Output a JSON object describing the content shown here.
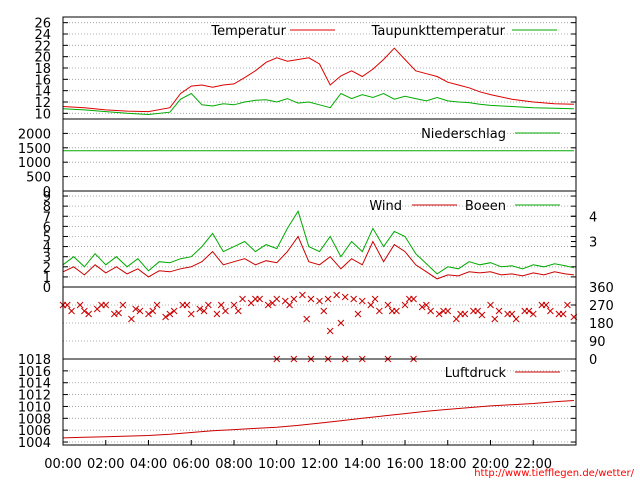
{
  "chart_data": [
    {
      "type": "line",
      "panel": "temperature",
      "ylim": [
        9,
        27
      ],
      "yticks": [
        "26",
        "24",
        "22",
        "20",
        "18",
        "16",
        "14",
        "12",
        "10"
      ],
      "ytick_values": [
        26,
        24,
        22,
        20,
        18,
        16,
        14,
        12,
        10
      ],
      "series": [
        {
          "name": "Temperatur",
          "color": "#dd0000",
          "x": [
            0,
            1,
            2,
            3,
            4,
            5,
            5.5,
            6,
            6.5,
            7,
            7.5,
            8,
            8.5,
            9,
            9.5,
            10,
            10.5,
            11,
            11.5,
            12,
            12.5,
            13,
            13.5,
            14,
            14.5,
            15,
            15.5,
            16,
            16.5,
            17,
            17.5,
            18,
            18.5,
            19,
            19.5,
            20,
            21,
            22,
            23,
            23.9
          ],
          "values": [
            11.2,
            11,
            10.6,
            10.4,
            10.3,
            11,
            13.5,
            14.8,
            15,
            14.6,
            15,
            15.2,
            16.3,
            17.5,
            19,
            19.8,
            19.2,
            19.5,
            19.8,
            18.7,
            15,
            16.6,
            17.5,
            16.5,
            17.8,
            19.5,
            21.5,
            19.5,
            17.5,
            17,
            16.5,
            15.5,
            15,
            14.5,
            13.8,
            13.3,
            12.5,
            12,
            11.7,
            11.6
          ]
        },
        {
          "name": "Taupunkttemperatur",
          "color": "#00aa00",
          "x": [
            0,
            1,
            2,
            3,
            4,
            5,
            5.5,
            6,
            6.5,
            7,
            7.5,
            8,
            8.5,
            9,
            9.5,
            10,
            10.5,
            11,
            11.5,
            12,
            12.5,
            13,
            13.5,
            14,
            14.5,
            15,
            15.5,
            16,
            16.5,
            17,
            17.5,
            18,
            18.5,
            19,
            19.5,
            20,
            21,
            22,
            23,
            23.9
          ],
          "values": [
            10.8,
            10.6,
            10.3,
            10,
            9.8,
            10.2,
            12.5,
            13.5,
            11.5,
            11.3,
            11.7,
            11.5,
            12,
            12.3,
            12.4,
            12,
            12.6,
            11.8,
            12,
            11.5,
            11,
            13.5,
            12.6,
            13.3,
            12.8,
            13.5,
            12.5,
            13,
            12.6,
            12.2,
            12.8,
            12.2,
            12,
            11.9,
            11.6,
            11.4,
            11.2,
            11,
            10.9,
            10.8
          ]
        }
      ]
    },
    {
      "type": "line",
      "panel": "precipitation",
      "ylim": [
        0,
        2500
      ],
      "yticks": [
        "2000",
        "1500",
        "1000",
        "500",
        "0"
      ],
      "ytick_values": [
        2000,
        1500,
        1000,
        500,
        0
      ],
      "series": [
        {
          "name": "Niederschlag",
          "color": "#00aa00",
          "x": [
            0,
            23.9
          ],
          "values": [
            1400,
            1400
          ]
        }
      ]
    },
    {
      "type": "line",
      "panel": "wind",
      "ylim": [
        0,
        9.5
      ],
      "yticks": [
        "9",
        "8",
        "7",
        "6",
        "5",
        "4",
        "3",
        "2",
        "1",
        "0"
      ],
      "ytick_values": [
        9,
        8,
        7,
        6,
        5,
        4,
        3,
        2,
        1,
        0
      ],
      "yticks_right": [
        "4",
        "3"
      ],
      "ytick_right_values": [
        7,
        4.5
      ],
      "series": [
        {
          "name": "Wind",
          "color": "#cc0000",
          "x": [
            0,
            0.5,
            1,
            1.5,
            2,
            2.5,
            3,
            3.5,
            4,
            4.5,
            5,
            5.5,
            6,
            6.5,
            7,
            7.5,
            8,
            8.5,
            9,
            9.5,
            10,
            10.5,
            11,
            11.5,
            12,
            12.5,
            13,
            13.5,
            14,
            14.5,
            15,
            15.5,
            16,
            16.5,
            17,
            17.5,
            18,
            18.5,
            19,
            19.5,
            20,
            20.5,
            21,
            21.5,
            22,
            22.5,
            23,
            23.5,
            23.9
          ],
          "values": [
            1.5,
            2,
            1.2,
            2.2,
            1.4,
            2,
            1.3,
            1.8,
            1,
            1.6,
            1.5,
            1.8,
            2,
            2.5,
            3.5,
            2.2,
            2.5,
            2.8,
            2.2,
            2.6,
            2.4,
            3.5,
            5,
            2.5,
            2.2,
            3,
            1.8,
            2.8,
            2.2,
            4.5,
            2.5,
            4.2,
            3.5,
            2.2,
            1.5,
            0.8,
            1.2,
            1.1,
            1.5,
            1.4,
            1.5,
            1.2,
            1.3,
            1.1,
            1.4,
            1.2,
            1.5,
            1.3,
            1.2
          ]
        },
        {
          "name": "Boeen",
          "color": "#00aa00",
          "x": [
            0,
            0.5,
            1,
            1.5,
            2,
            2.5,
            3,
            3.5,
            4,
            4.5,
            5,
            5.5,
            6,
            6.5,
            7,
            7.5,
            8,
            8.5,
            9,
            9.5,
            10,
            10.5,
            11,
            11.5,
            12,
            12.5,
            13,
            13.5,
            14,
            14.5,
            15,
            15.5,
            16,
            16.5,
            17,
            17.5,
            18,
            18.5,
            19,
            19.5,
            20,
            20.5,
            21,
            21.5,
            22,
            22.5,
            23,
            23.5,
            23.9
          ],
          "values": [
            2.2,
            3,
            2,
            3.3,
            2.2,
            3,
            2,
            2.8,
            1.6,
            2.5,
            2.4,
            2.8,
            3,
            4,
            5.3,
            3.5,
            4,
            4.5,
            3.5,
            4.2,
            3.8,
            5.8,
            7.5,
            4,
            3.5,
            5,
            3,
            4.5,
            3.5,
            5.8,
            4,
            5.5,
            5,
            3.3,
            2.3,
            1.3,
            2,
            1.8,
            2.5,
            2.2,
            2.4,
            2,
            2.1,
            1.8,
            2.2,
            2,
            2.3,
            2.1,
            1.9
          ]
        }
      ]
    },
    {
      "type": "scatter",
      "panel": "wind-direction",
      "ylim": [
        0,
        360
      ],
      "yticks_right": [
        "360",
        "270",
        "180",
        "90",
        "0"
      ],
      "ytick_right_values": [
        360,
        270,
        180,
        90,
        0
      ],
      "series": [
        {
          "name": "Windrichtung",
          "color": "#cc0000",
          "x": [
            0,
            0.4,
            0.8,
            1.2,
            1.6,
            2,
            2.4,
            2.8,
            3.2,
            3.6,
            4,
            4.4,
            4.8,
            5.2,
            5.6,
            6,
            6.4,
            6.8,
            7.2,
            7.6,
            8,
            8.4,
            8.8,
            9.2,
            9.6,
            10,
            10.4,
            10.8,
            11.2,
            11.6,
            12,
            12.4,
            12.8,
            13.2,
            13.6,
            14,
            14.4,
            14.8,
            15.2,
            15.6,
            16,
            16.4,
            16.8,
            17.2,
            17.6,
            18,
            18.4,
            18.8,
            19.2,
            19.6,
            20,
            20.4,
            20.8,
            21.2,
            21.6,
            22,
            22.4,
            22.8,
            23.2,
            23.6,
            23.9,
            0.2,
            1,
            1.8,
            2.6,
            3.4,
            4.2,
            5,
            5.8,
            6.6,
            7.4,
            8.2,
            9,
            9.8,
            10.6,
            11.4,
            12.2,
            13,
            13.8,
            14.6,
            15.4,
            16.2,
            17,
            17.8,
            18.6,
            19.4,
            20.2,
            21,
            21.8,
            22.6,
            23.4,
            10,
            10.8,
            11.6,
            12.4,
            13.2,
            14,
            15.2,
            16.4,
            12.5
          ],
          "values": [
            270,
            240,
            270,
            225,
            250,
            270,
            225,
            270,
            200,
            240,
            225,
            270,
            210,
            240,
            270,
            225,
            250,
            270,
            225,
            240,
            270,
            300,
            280,
            300,
            270,
            300,
            290,
            300,
            320,
            300,
            290,
            300,
            320,
            310,
            300,
            290,
            270,
            240,
            270,
            240,
            270,
            300,
            260,
            240,
            225,
            240,
            200,
            225,
            240,
            220,
            270,
            240,
            225,
            200,
            240,
            225,
            270,
            240,
            225,
            270,
            210,
            270,
            240,
            270,
            230,
            250,
            240,
            225,
            270,
            240,
            270,
            240,
            300,
            280,
            270,
            200,
            240,
            180,
            225,
            300,
            240,
            300,
            270,
            240,
            225,
            240,
            200,
            225,
            240,
            270,
            225,
            0,
            0,
            0,
            0,
            0,
            0,
            0,
            0,
            140
          ]
        }
      ]
    },
    {
      "type": "line",
      "panel": "pressure",
      "ylim": [
        1003.5,
        1018
      ],
      "yticks": [
        "1018",
        "1016",
        "1014",
        "1012",
        "1010",
        "1008",
        "1006",
        "1004"
      ],
      "ytick_values": [
        1018,
        1016,
        1014,
        1012,
        1010,
        1008,
        1006,
        1004
      ],
      "series": [
        {
          "name": "Luftdruck",
          "color": "#cc0000",
          "x": [
            0,
            1,
            2,
            3,
            4,
            5,
            6,
            7,
            8,
            9,
            10,
            11,
            12,
            13,
            14,
            15,
            16,
            17,
            18,
            19,
            20,
            21,
            22,
            23,
            23.9
          ],
          "values": [
            1004.7,
            1004.8,
            1004.9,
            1005,
            1005.1,
            1005.3,
            1005.6,
            1005.9,
            1006.1,
            1006.3,
            1006.5,
            1006.8,
            1007.2,
            1007.6,
            1008,
            1008.4,
            1008.8,
            1009.2,
            1009.5,
            1009.8,
            1010.1,
            1010.3,
            1010.5,
            1010.8,
            1011
          ]
        }
      ]
    }
  ],
  "legend": {
    "temperatur": "Temperatur",
    "taupunkt": "Taupunkttemperatur",
    "niederschlag": "Niederschlag",
    "wind": "Wind",
    "boeen": "Boeen",
    "luftdruck": "Luftdruck"
  },
  "x_axis": {
    "ticks": [
      "00:00",
      "02:00",
      "04:00",
      "06:00",
      "08:00",
      "10:00",
      "12:00",
      "14:00",
      "16:00",
      "18:00",
      "20:00",
      "22:00"
    ],
    "tick_values": [
      0,
      2,
      4,
      6,
      8,
      10,
      12,
      14,
      16,
      18,
      20,
      22
    ],
    "range": [
      0,
      24
    ]
  },
  "credit": "http://www.tiefflegen.de/wetter/"
}
